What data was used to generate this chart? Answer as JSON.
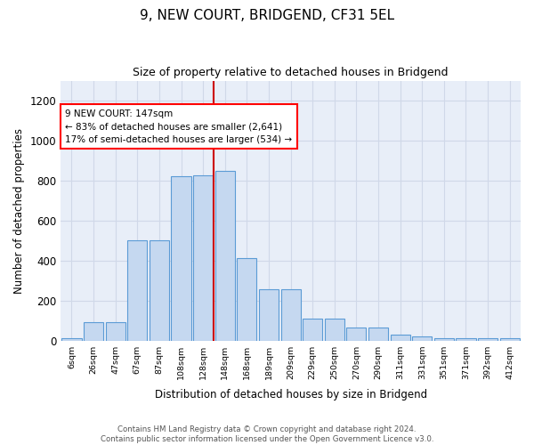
{
  "title": "9, NEW COURT, BRIDGEND, CF31 5EL",
  "subtitle": "Size of property relative to detached houses in Bridgend",
  "xlabel": "Distribution of detached houses by size in Bridgend",
  "ylabel": "Number of detached properties",
  "bin_labels": [
    "6sqm",
    "26sqm",
    "47sqm",
    "67sqm",
    "87sqm",
    "108sqm",
    "128sqm",
    "148sqm",
    "168sqm",
    "189sqm",
    "209sqm",
    "229sqm",
    "250sqm",
    "270sqm",
    "290sqm",
    "311sqm",
    "331sqm",
    "351sqm",
    "371sqm",
    "392sqm",
    "412sqm"
  ],
  "bar_values": [
    10,
    90,
    90,
    500,
    500,
    820,
    825,
    850,
    410,
    255,
    255,
    110,
    110,
    65,
    65,
    30,
    20,
    13,
    13,
    13,
    10
  ],
  "bar_color": "#c5d8f0",
  "bar_edge_color": "#5b9bd5",
  "vline_index": 7,
  "property_line_label": "9 NEW COURT: 147sqm",
  "annotation_line1": "← 83% of detached houses are smaller (2,641)",
  "annotation_line2": "17% of semi-detached houses are larger (534) →",
  "vline_color": "#cc0000",
  "ylim": [
    0,
    1300
  ],
  "yticks": [
    0,
    200,
    400,
    600,
    800,
    1000,
    1200
  ],
  "grid_color": "#d0d8e8",
  "bg_color": "#e8eef8",
  "footnote": "Contains HM Land Registry data © Crown copyright and database right 2024.\nContains public sector information licensed under the Open Government Licence v3.0.",
  "title_fontsize": 11,
  "subtitle_fontsize": 9
}
